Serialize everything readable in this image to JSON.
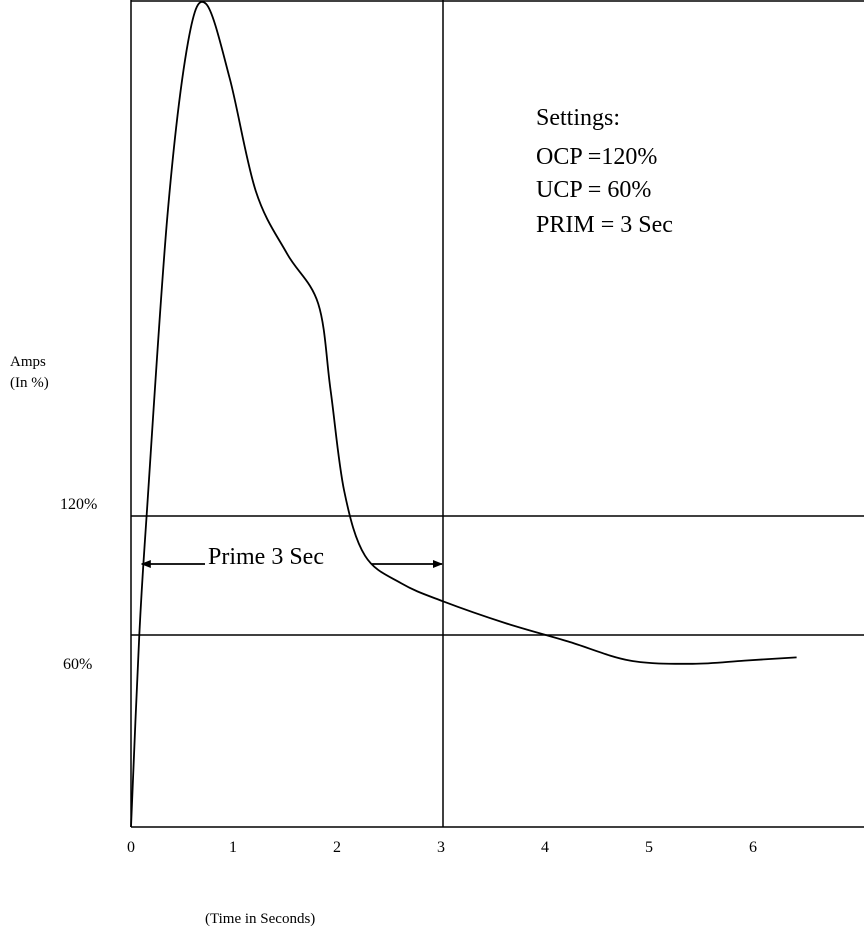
{
  "chart_data": {
    "type": "line",
    "title": "",
    "xlabel": "(Time in Seconds)",
    "ylabel_lines": [
      "Amps",
      "(In %)"
    ],
    "x_ticks": [
      "0",
      "1",
      "2",
      "3",
      "4",
      "5",
      "6"
    ],
    "xlim": [
      0,
      6.5
    ],
    "y_scale": "unlabeled",
    "reference_lines": {
      "horizontal": [
        {
          "label": "120%",
          "value": 120
        },
        {
          "label": "60%",
          "value": 60
        }
      ],
      "vertical": [
        {
          "x": 3
        }
      ]
    },
    "series": [
      {
        "points": [
          {
            "x": 0.0,
            "y": 0
          },
          {
            "x": 0.08,
            "y": 60
          },
          {
            "x": 0.15,
            "y": 120
          },
          {
            "x": 0.35,
            "y": 360
          },
          {
            "x": 0.55,
            "y": 500
          },
          {
            "x": 0.72,
            "y": 530
          },
          {
            "x": 0.95,
            "y": 470
          },
          {
            "x": 1.2,
            "y": 380
          },
          {
            "x": 1.5,
            "y": 330
          },
          {
            "x": 1.8,
            "y": 290
          },
          {
            "x": 1.92,
            "y": 220
          },
          {
            "x": 2.05,
            "y": 140
          },
          {
            "x": 2.25,
            "y": 100
          },
          {
            "x": 2.6,
            "y": 86
          },
          {
            "x": 3.0,
            "y": 77
          },
          {
            "x": 3.6,
            "y": 66
          },
          {
            "x": 4.2,
            "y": 58
          },
          {
            "x": 4.8,
            "y": 52
          },
          {
            "x": 5.4,
            "y": 51
          },
          {
            "x": 5.9,
            "y": 52
          },
          {
            "x": 6.4,
            "y": 53
          }
        ]
      }
    ],
    "annotations": {
      "settings": [
        "Settings:",
        "OCP =120%",
        "UCP = 60%",
        "PRIM = 3 Sec"
      ],
      "prime": {
        "label": "Prime 3 Sec",
        "x_start": 0.2,
        "x_end": 3.0
      }
    }
  }
}
